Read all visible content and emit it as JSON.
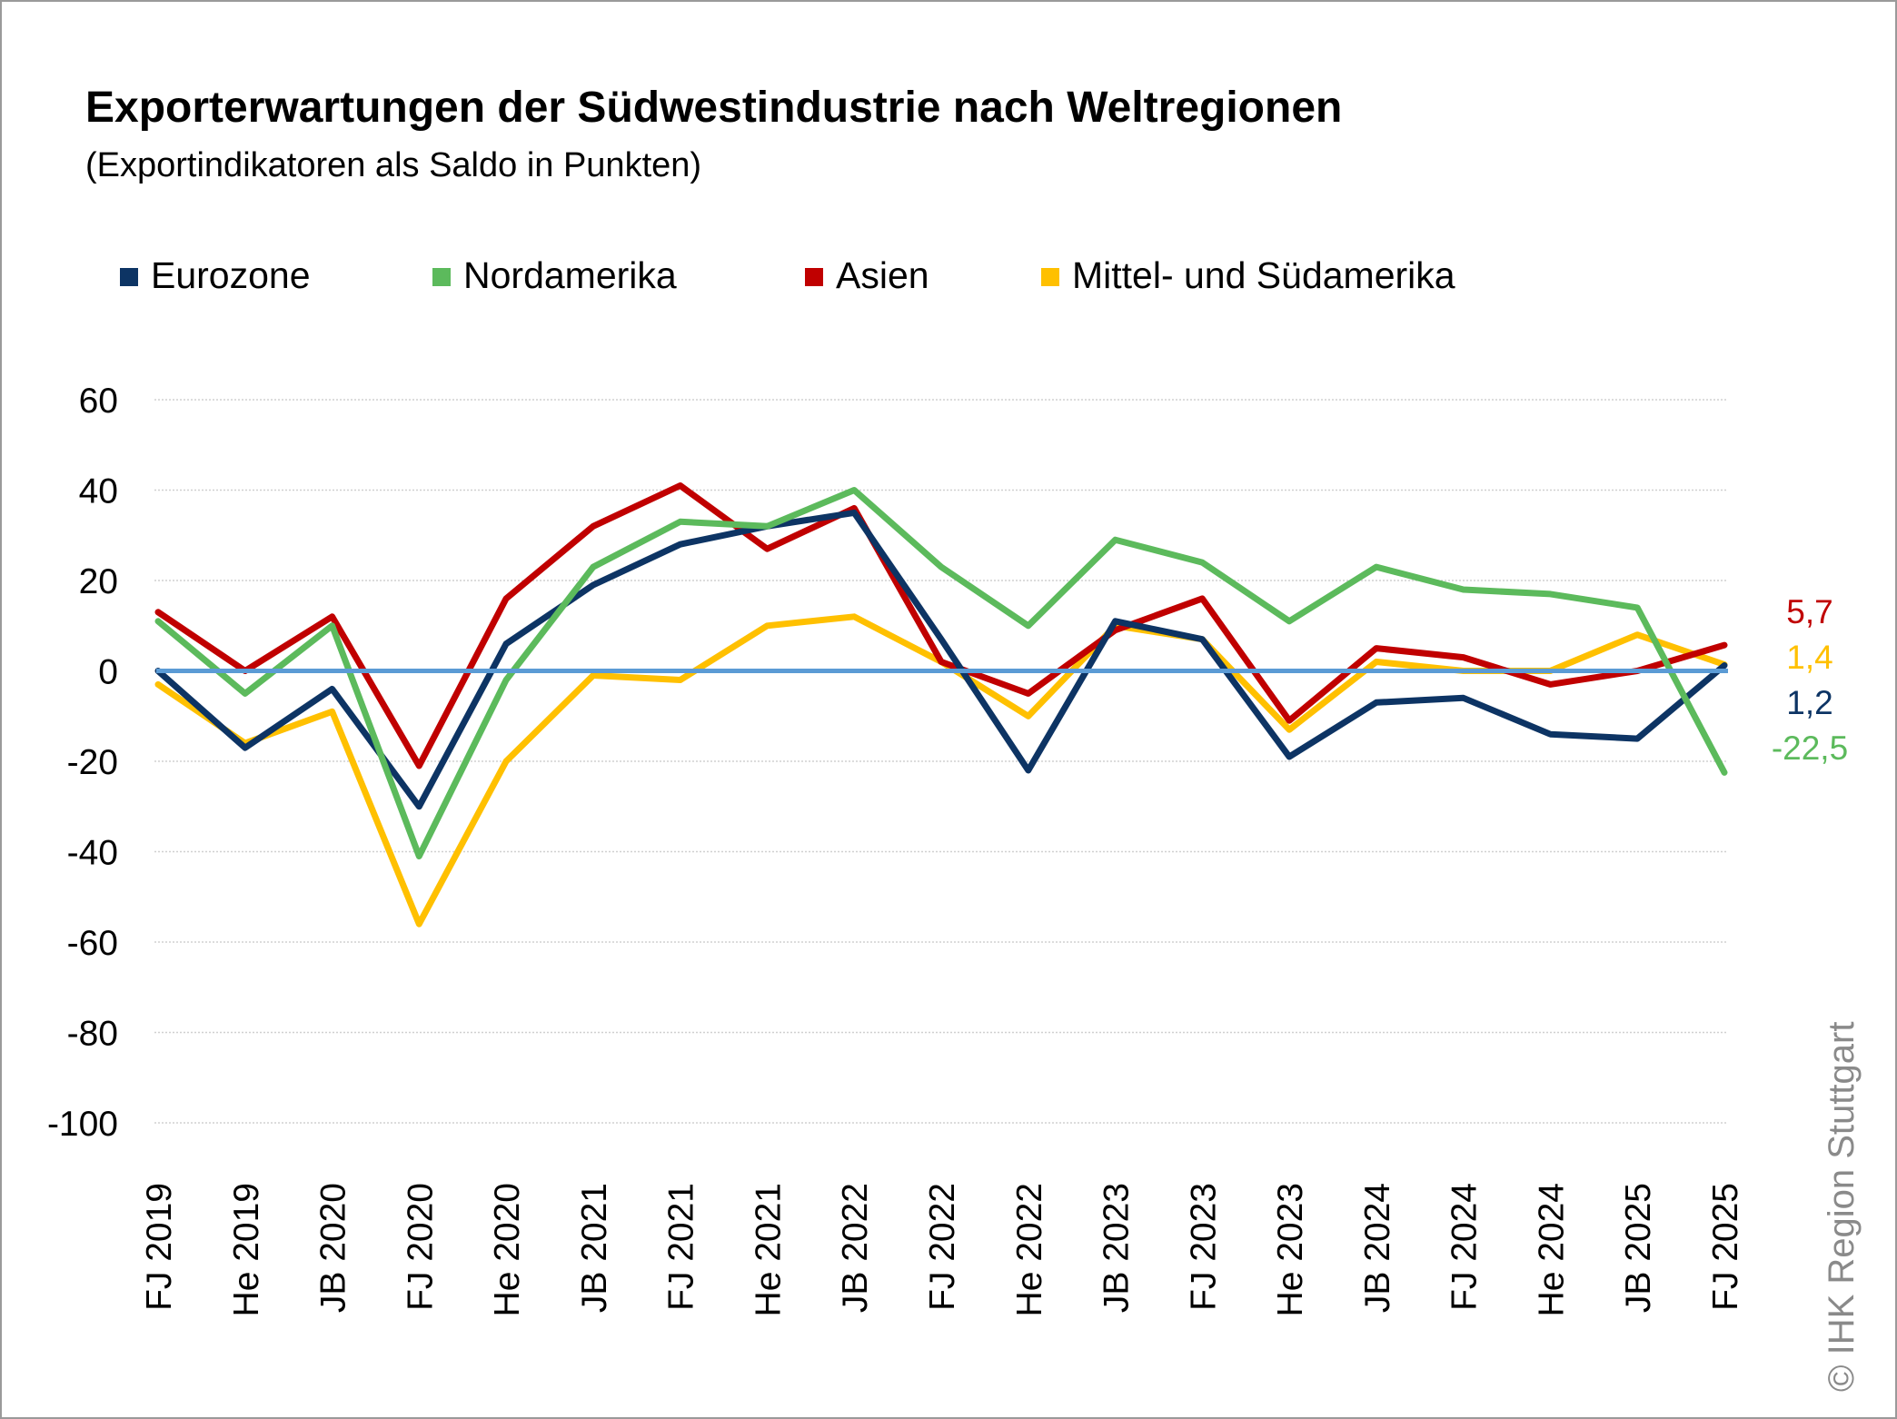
{
  "chart_data": {
    "type": "line",
    "title": "Exporterwartungen der Südwestindustrie nach Weltregionen",
    "subtitle": "(Exportindikatoren als Saldo in Punkten)",
    "categories": [
      "FJ 2019",
      "He 2019",
      "JB 2020",
      "FJ 2020",
      "He 2020",
      "JB 2021",
      "FJ 2021",
      "He 2021",
      "JB 2022",
      "FJ 2022",
      "He 2022",
      "JB 2023",
      "FJ 2023",
      "He 2023",
      "JB 2024",
      "FJ 2024",
      "He 2024",
      "JB 2025",
      "FJ 2025"
    ],
    "ylim": [
      -100,
      60
    ],
    "yticks": [
      "60",
      "40",
      "20",
      "0",
      "-20",
      "-40",
      "-60",
      "-80",
      "-100"
    ],
    "zero_line_color": "#5b9bd5",
    "series": [
      {
        "name": "Mittel- und Südamerika",
        "color": "#ffc000",
        "values": [
          -3,
          -16,
          -9,
          -56,
          -20,
          -1,
          -2,
          10,
          12,
          2,
          -10,
          10,
          7,
          -13,
          2,
          0,
          0,
          8,
          1.4
        ],
        "end_label": "1,4"
      },
      {
        "name": "Asien",
        "color": "#c00000",
        "values": [
          13,
          0,
          12,
          -21,
          16,
          32,
          41,
          27,
          36,
          2,
          -5,
          9,
          16,
          -11,
          5,
          3,
          -3,
          0,
          5.7
        ],
        "end_label": "5,7"
      },
      {
        "name": "Eurozone",
        "color": "#0d3464",
        "values": [
          0,
          -17,
          -4,
          -30,
          6,
          19,
          28,
          32,
          35,
          7,
          -22,
          11,
          7,
          -19,
          -7,
          -6,
          -14,
          -15,
          1.2
        ],
        "end_label": "1,2"
      },
      {
        "name": "Nordamerika",
        "color": "#5cba5c",
        "values": [
          11,
          -5,
          10,
          -41,
          -2,
          23,
          33,
          32,
          40,
          23,
          10,
          29,
          24,
          11,
          23,
          18,
          17,
          14,
          -22.5
        ],
        "end_label": "-22,5"
      }
    ],
    "legend": [
      {
        "name": "Eurozone",
        "color": "#0d3464"
      },
      {
        "name": "Nordamerika",
        "color": "#5cba5c"
      },
      {
        "name": "Asien",
        "color": "#c00000"
      },
      {
        "name": "Mittel- und Südamerika",
        "color": "#ffc000"
      }
    ],
    "legend_position": "top-left"
  },
  "copyright": "© IHK Region Stuttgart"
}
